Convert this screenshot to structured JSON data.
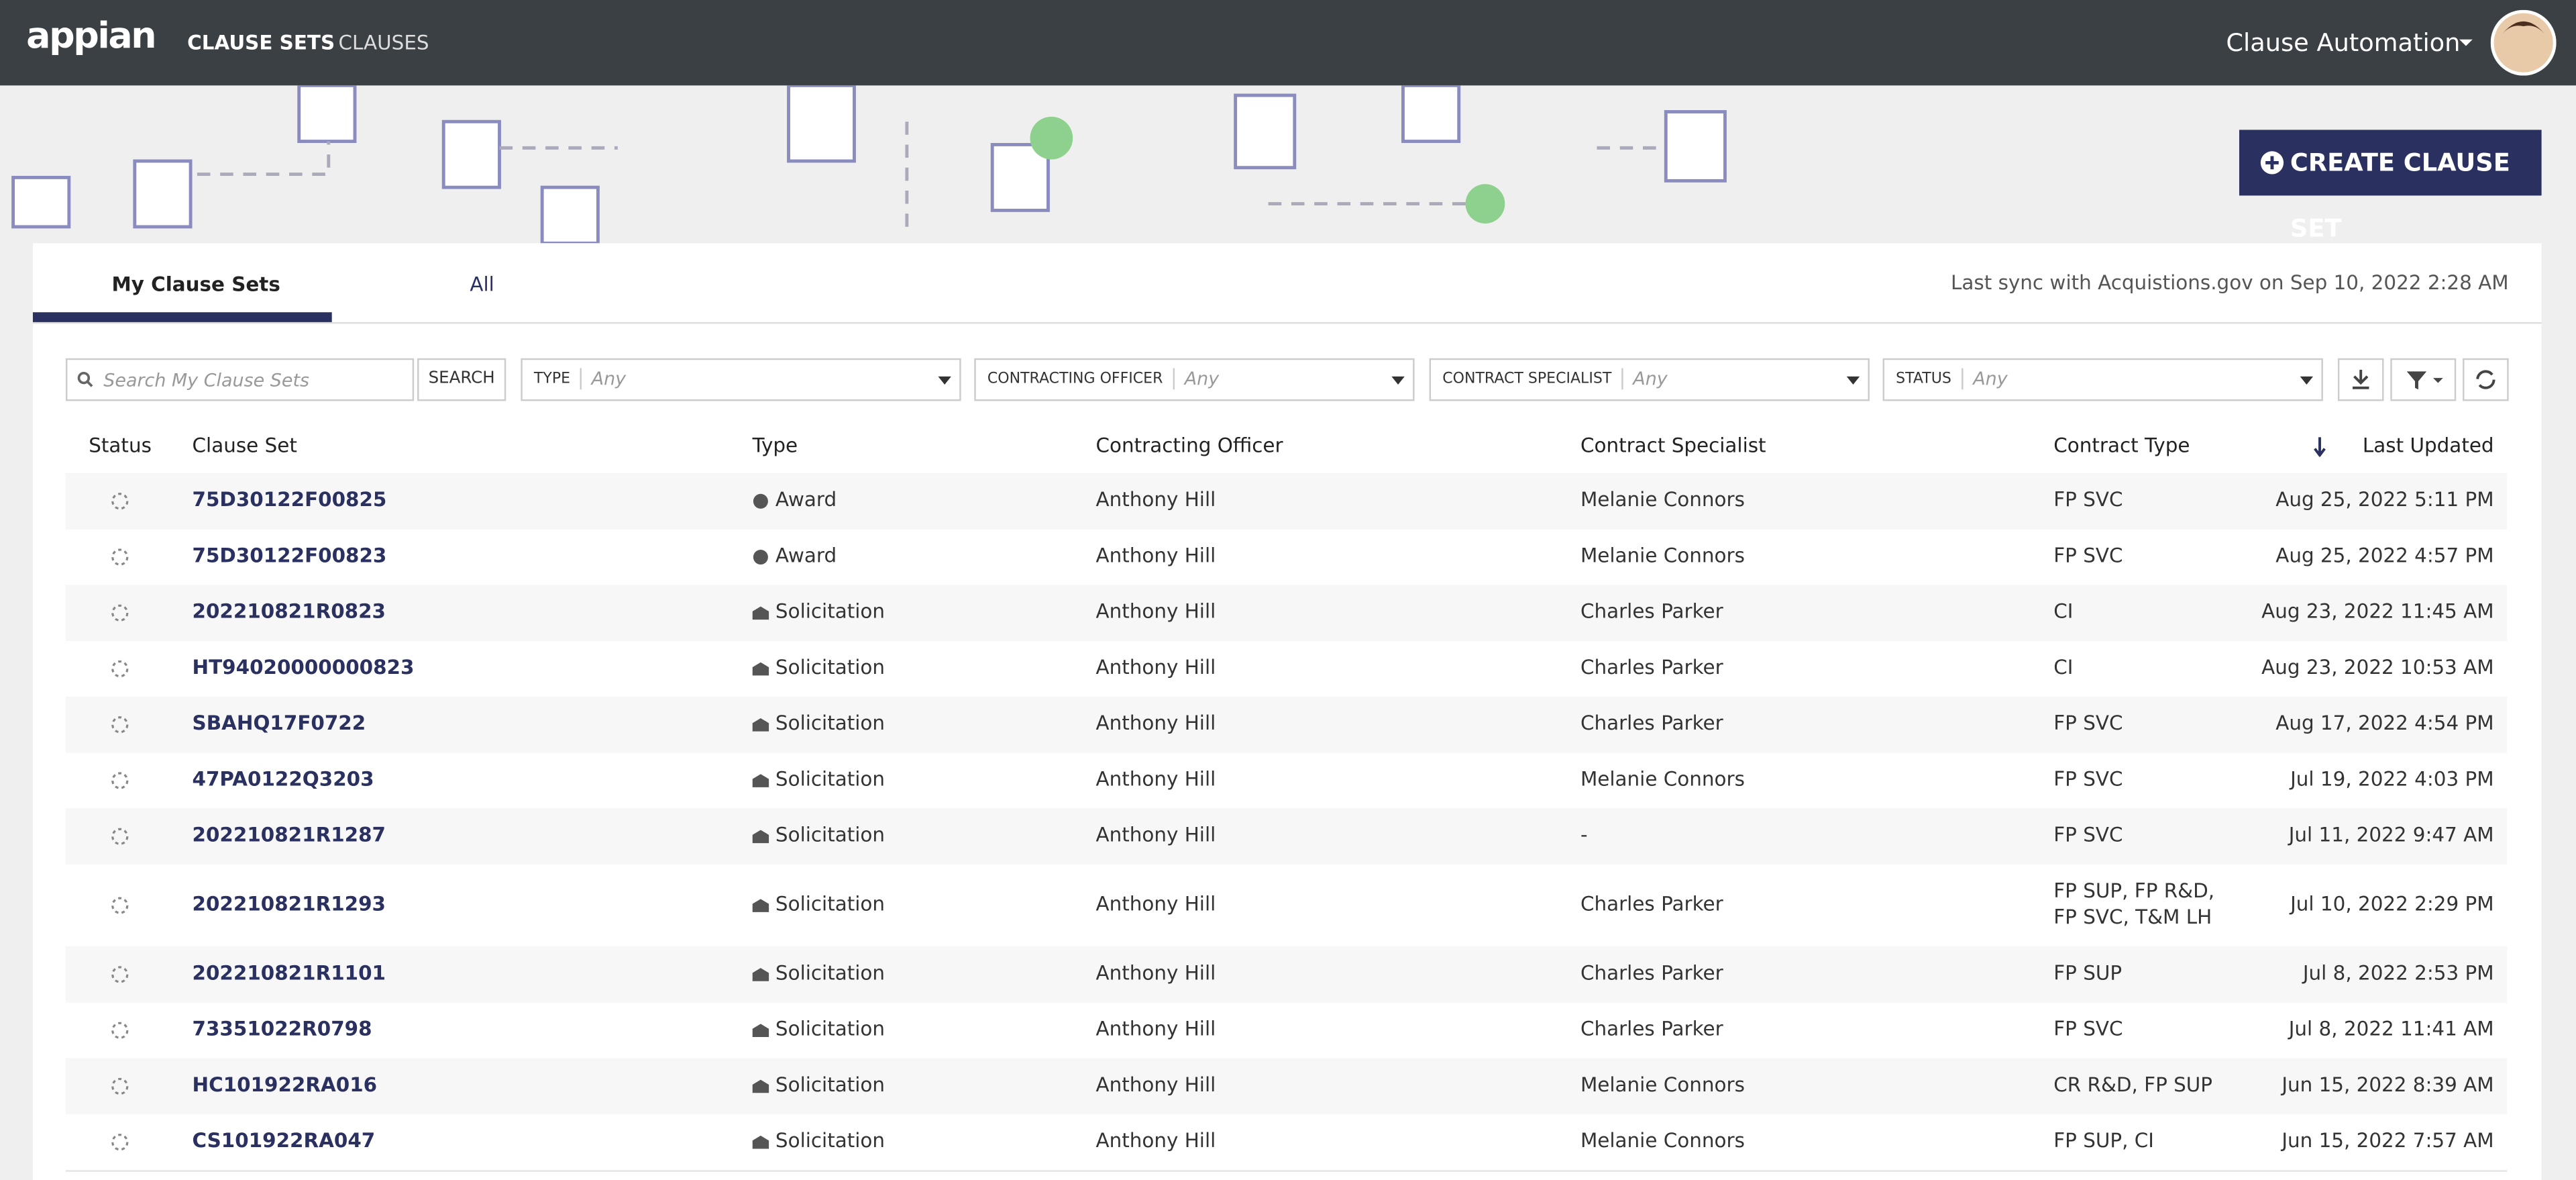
{
  "nav": {
    "logo": "appian",
    "links": [
      "CLAUSE SETS",
      "CLAUSES"
    ],
    "app_name": "Clause Automation"
  },
  "actions": {
    "create": "CREATE CLAUSE SET"
  },
  "tabs": [
    "My Clause Sets",
    "All"
  ],
  "sync_note": "Last sync with Acquistions.gov on Sep 10, 2022 2:28 AM",
  "search": {
    "placeholder": "Search My Clause Sets",
    "button": "SEARCH"
  },
  "filters": [
    {
      "label": "TYPE",
      "value": "Any"
    },
    {
      "label": "CONTRACTING OFFICER",
      "value": "Any"
    },
    {
      "label": "CONTRACT SPECIALIST",
      "value": "Any"
    },
    {
      "label": "STATUS",
      "value": "Any"
    }
  ],
  "table": {
    "columns": [
      "Status",
      "Clause Set",
      "Type",
      "Contracting Officer",
      "Contract Specialist",
      "Contract Type",
      "Last Updated"
    ],
    "rows": [
      [
        "75D30122F00825",
        "Award",
        "Anthony Hill",
        "Melanie Connors",
        "FP SVC",
        "Aug 25, 2022 5:11 PM"
      ],
      [
        "75D30122F00823",
        "Award",
        "Anthony Hill",
        "Melanie Connors",
        "FP SVC",
        "Aug 25, 2022 4:57 PM"
      ],
      [
        "202210821R0823",
        "Solicitation",
        "Anthony Hill",
        "Charles Parker",
        "CI",
        "Aug 23, 2022 11:45 AM"
      ],
      [
        "HT94020000000823",
        "Solicitation",
        "Anthony Hill",
        "Charles Parker",
        "CI",
        "Aug 23, 2022 10:53 AM"
      ],
      [
        "SBAHQ17F0722",
        "Solicitation",
        "Anthony Hill",
        "Charles Parker",
        "FP SVC",
        "Aug 17, 2022 4:54 PM"
      ],
      [
        "47PA0122Q3203",
        "Solicitation",
        "Anthony Hill",
        "Melanie Connors",
        "FP SVC",
        "Jul 19, 2022 4:03 PM"
      ],
      [
        "202210821R1287",
        "Solicitation",
        "Anthony Hill",
        "-",
        "FP SVC",
        "Jul 11, 2022 9:47 AM"
      ],
      [
        "202210821R1293",
        "Solicitation",
        "Anthony Hill",
        "Charles Parker",
        "FP SUP, FP R&D, FP SVC, T&M LH",
        "Jul 10, 2022 2:29 PM"
      ],
      [
        "202210821R1101",
        "Solicitation",
        "Anthony Hill",
        "Charles Parker",
        "FP SUP",
        "Jul 8, 2022 2:53 PM"
      ],
      [
        "73351022R0798",
        "Solicitation",
        "Anthony Hill",
        "Charles Parker",
        "FP SVC",
        "Jul 8, 2022 11:41 AM"
      ],
      [
        "HC101922RA016",
        "Solicitation",
        "Anthony Hill",
        "Melanie Connors",
        "CR R&D, FP SUP",
        "Jun 15, 2022 8:39 AM"
      ],
      [
        "CS101922RA047",
        "Solicitation",
        "Anthony Hill",
        "Melanie Connors",
        "FP SUP, CI",
        "Jun 15, 2022 7:57 AM"
      ]
    ]
  }
}
